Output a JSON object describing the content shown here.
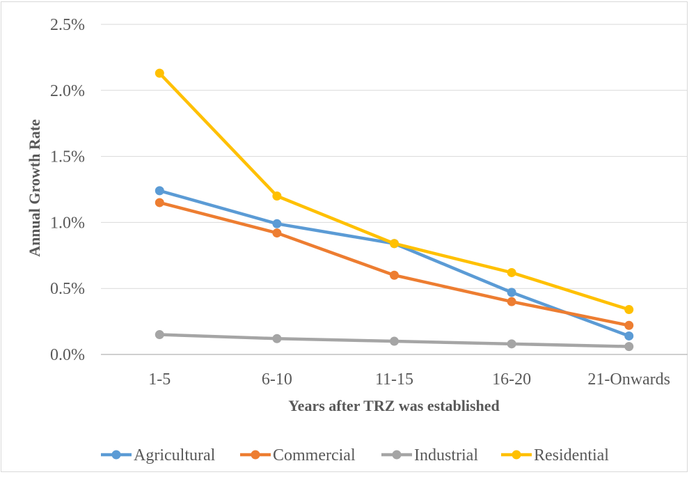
{
  "chart_data": {
    "type": "line",
    "categories": [
      "1-5",
      "6-10",
      "11-15",
      "16-20",
      "21-Onwards"
    ],
    "xlabel": "Years after TRZ was established",
    "ylabel": "Annual Growth Rate",
    "ylim": [
      0,
      2.5
    ],
    "yticks": [
      "0.0%",
      "0.5%",
      "1.0%",
      "1.5%",
      "2.0%",
      "2.5%"
    ],
    "grid": "horizontal",
    "legend_position": "bottom",
    "series": [
      {
        "name": "Agricultural",
        "color": "#5b9bd5",
        "values": [
          1.24,
          0.99,
          0.84,
          0.47,
          0.14
        ]
      },
      {
        "name": "Commercial",
        "color": "#ed7d31",
        "values": [
          1.15,
          0.92,
          0.6,
          0.4,
          0.22
        ]
      },
      {
        "name": "Industrial",
        "color": "#a5a5a5",
        "values": [
          0.15,
          0.12,
          0.1,
          0.08,
          0.06
        ]
      },
      {
        "name": "Residential",
        "color": "#ffc000",
        "values": [
          2.13,
          1.2,
          0.84,
          0.62,
          0.34
        ]
      }
    ]
  }
}
